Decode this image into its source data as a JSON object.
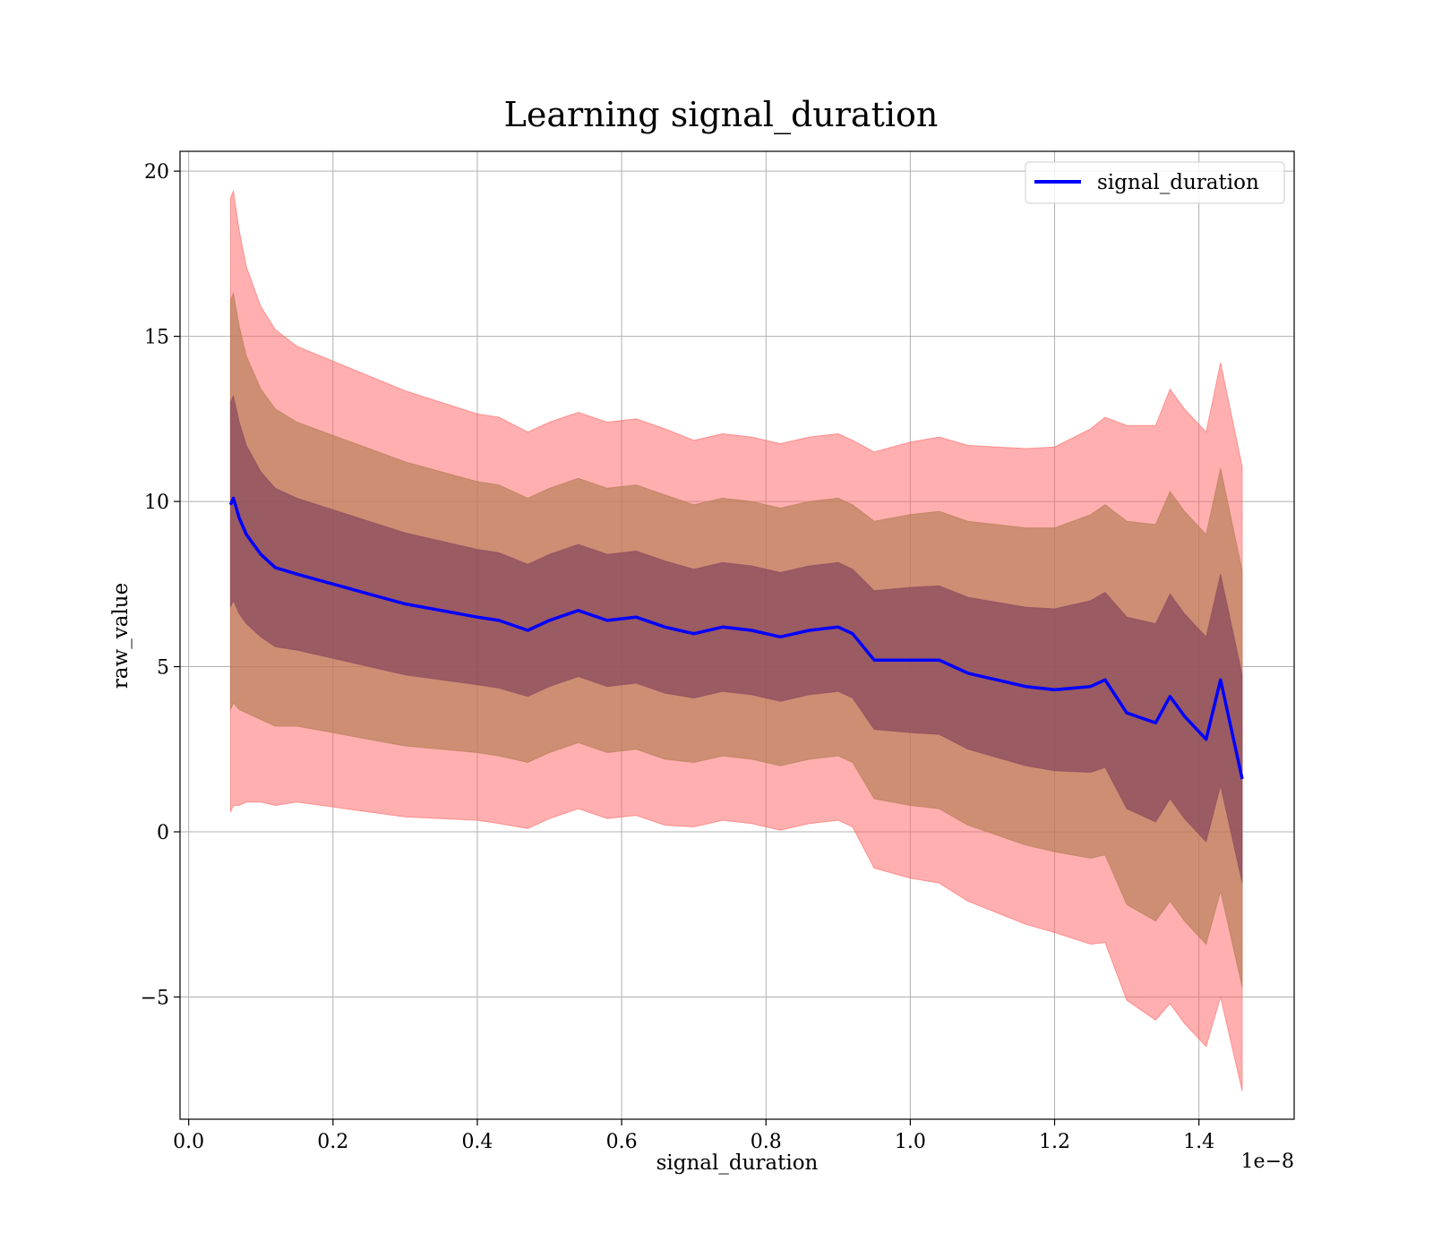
{
  "chart_data": {
    "type": "area",
    "title": "Learning signal_duration",
    "xlabel": "signal_duration",
    "ylabel": "raw_value",
    "x_offset_label": "1e−8",
    "xlim": [
      -0.012,
      1.532
    ],
    "ylim": [
      -8.7,
      20.6
    ],
    "x_ticks": [
      0.0,
      0.2,
      0.4,
      0.6,
      0.8,
      1.0,
      1.2,
      1.4
    ],
    "x_tick_labels": [
      "0.0",
      "0.2",
      "0.4",
      "0.6",
      "0.8",
      "1.0",
      "1.2",
      "1.4"
    ],
    "y_ticks": [
      -5,
      0,
      5,
      10,
      15,
      20
    ],
    "y_tick_labels": [
      "−5",
      "0",
      "5",
      "10",
      "15",
      "20"
    ],
    "grid": true,
    "legend": {
      "position": "top-right",
      "entries": [
        "signal_duration"
      ]
    },
    "colors": {
      "mean_line": "#0000ff",
      "band_3sd": "#ff6666",
      "band_2sd": "#b07a50",
      "band_1sd": "#8a4a5e"
    },
    "x": [
      0.058,
      0.062,
      0.07,
      0.08,
      0.1,
      0.12,
      0.15,
      0.2,
      0.25,
      0.3,
      0.35,
      0.4,
      0.43,
      0.47,
      0.5,
      0.54,
      0.58,
      0.62,
      0.66,
      0.7,
      0.74,
      0.78,
      0.82,
      0.86,
      0.9,
      0.92,
      0.95,
      1.0,
      1.04,
      1.08,
      1.12,
      1.16,
      1.2,
      1.25,
      1.27,
      1.3,
      1.34,
      1.36,
      1.38,
      1.41,
      1.43,
      1.46
    ],
    "series": [
      {
        "name": "signal_duration",
        "mean": [
          9.9,
          10.1,
          9.5,
          9.0,
          8.4,
          8.0,
          7.8,
          7.5,
          7.2,
          6.9,
          6.7,
          6.5,
          6.4,
          6.1,
          6.4,
          6.7,
          6.4,
          6.5,
          6.2,
          6.0,
          6.2,
          6.1,
          5.9,
          6.1,
          6.2,
          6.0,
          5.2,
          5.2,
          5.2,
          4.8,
          4.6,
          4.4,
          4.3,
          4.4,
          4.6,
          3.6,
          3.3,
          4.1,
          3.5,
          2.8,
          4.6,
          1.6
        ],
        "std": [
          3.1,
          3.1,
          2.9,
          2.7,
          2.5,
          2.4,
          2.3,
          2.25,
          2.2,
          2.15,
          2.1,
          2.05,
          2.05,
          2.0,
          2.0,
          2.0,
          2.0,
          2.0,
          2.0,
          1.95,
          1.95,
          1.95,
          1.95,
          1.95,
          1.95,
          1.95,
          2.1,
          2.2,
          2.25,
          2.3,
          2.35,
          2.4,
          2.45,
          2.6,
          2.65,
          2.9,
          3.0,
          3.1,
          3.1,
          3.1,
          3.2,
          3.15
        ]
      }
    ]
  }
}
